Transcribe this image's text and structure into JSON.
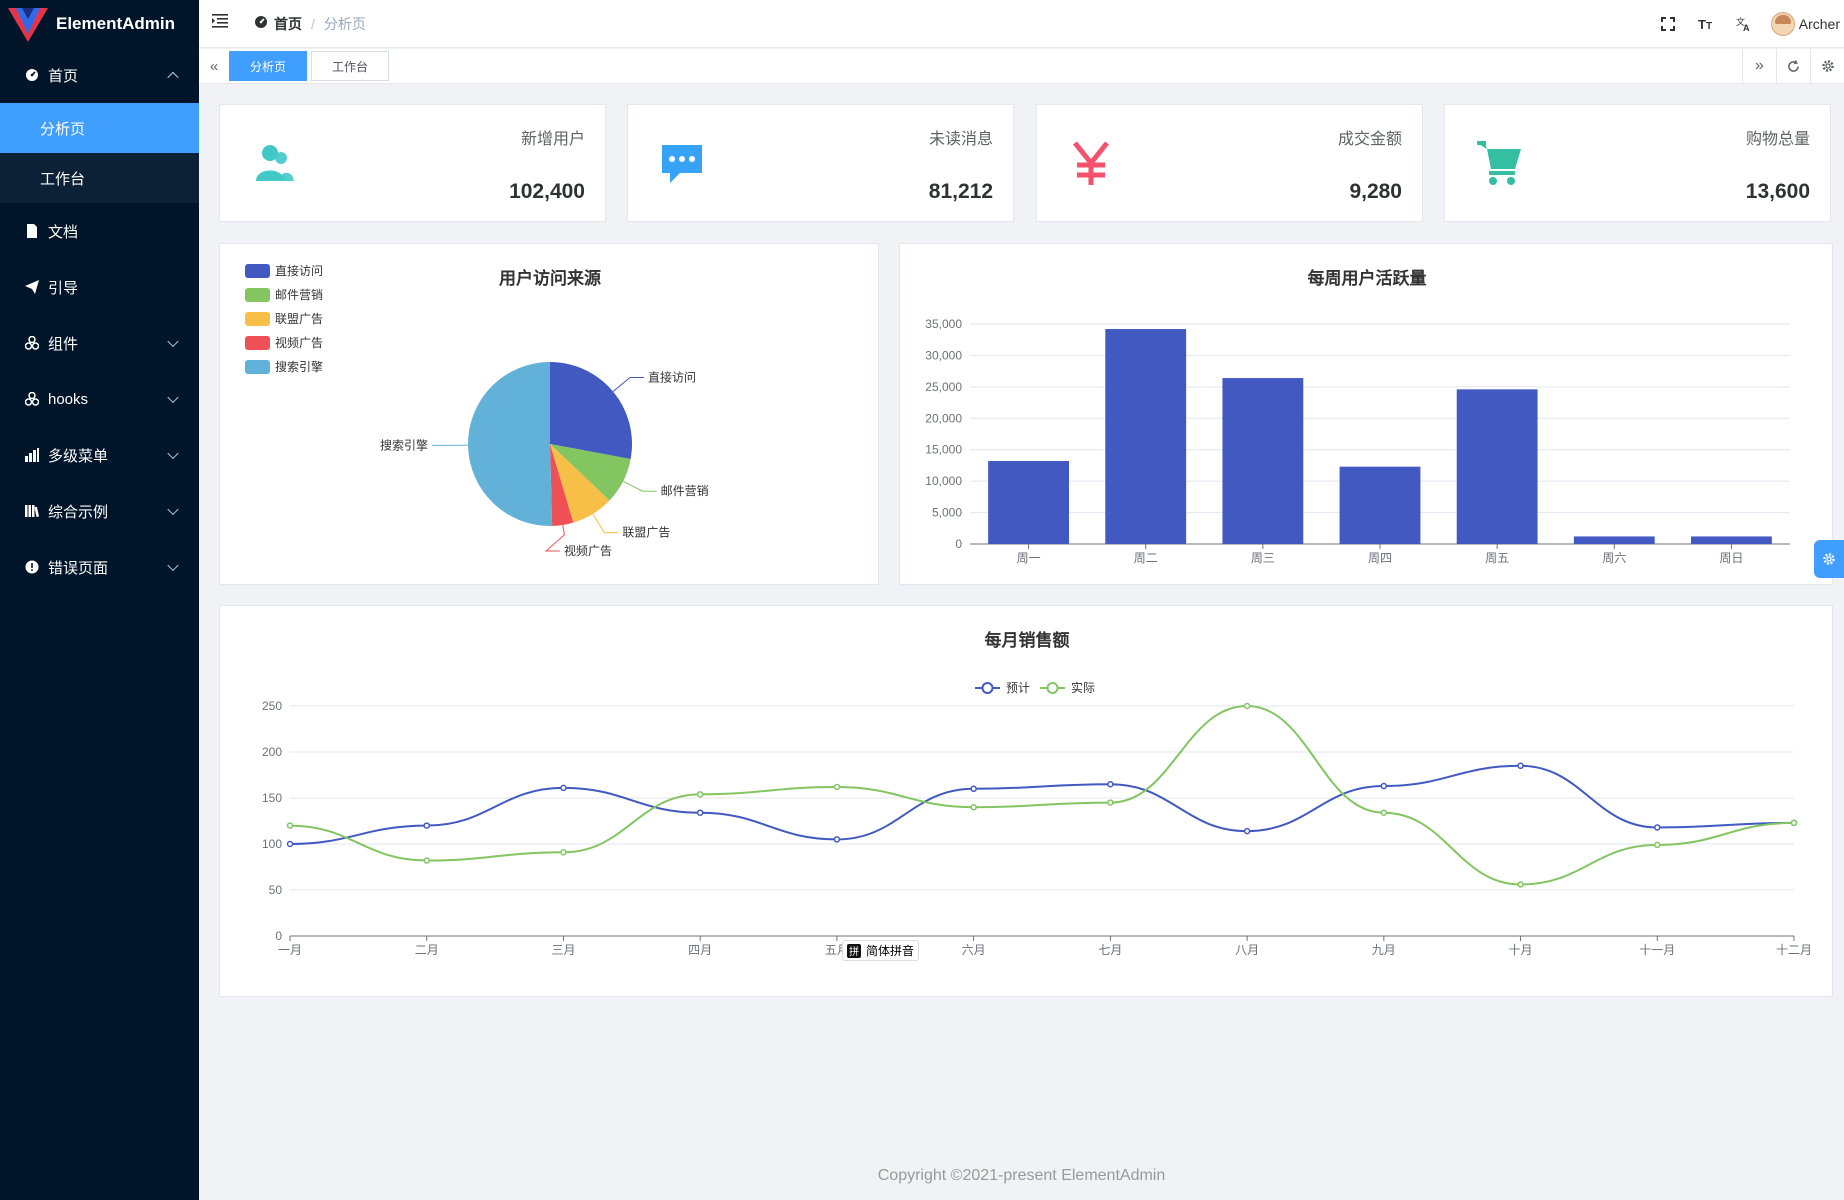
{
  "app": {
    "name": "ElementAdmin"
  },
  "sidebar": {
    "items": [
      {
        "label": "首页",
        "icon": "dashboard-icon",
        "expanded": true,
        "children": [
          {
            "label": "分析页",
            "active": true
          },
          {
            "label": "工作台",
            "active": false
          }
        ]
      },
      {
        "label": "文档",
        "icon": "document-icon"
      },
      {
        "label": "引导",
        "icon": "send-icon"
      },
      {
        "label": "组件",
        "icon": "components-icon",
        "hasChildren": true
      },
      {
        "label": "hooks",
        "icon": "hooks-icon",
        "hasChildren": true
      },
      {
        "label": "多级菜单",
        "icon": "bar-chart-icon",
        "hasChildren": true
      },
      {
        "label": "综合示例",
        "icon": "library-icon",
        "hasChildren": true
      },
      {
        "label": "错误页面",
        "icon": "error-icon",
        "hasChildren": true
      }
    ]
  },
  "header": {
    "breadcrumb": {
      "home": "首页",
      "current": "分析页"
    },
    "user": "Archer"
  },
  "tabs": [
    {
      "label": "分析页",
      "active": true
    },
    {
      "label": "工作台",
      "active": false
    }
  ],
  "stats": [
    {
      "label": "新增用户",
      "value": "102,400",
      "icon": "users-icon",
      "color": "#40c9c6"
    },
    {
      "label": "未读消息",
      "value": "81,212",
      "icon": "message-icon",
      "color": "#36a3f7"
    },
    {
      "label": "成交金额",
      "value": "9,280",
      "icon": "yen-icon",
      "color": "#f4516c"
    },
    {
      "label": "购物总量",
      "value": "13,600",
      "icon": "cart-icon",
      "color": "#34bfa3"
    }
  ],
  "ime": {
    "label": "简体拼音",
    "glyph": "拼"
  },
  "footer": {
    "text": "Copyright ©2021-present ElementAdmin"
  },
  "chart_data": [
    {
      "type": "pie",
      "title": "用户访问来源",
      "legend_position": "top-left",
      "categories": [
        "直接访问",
        "邮件营销",
        "联盟广告",
        "视频广告",
        "搜索引擎"
      ],
      "values": [
        335,
        110,
        100,
        50,
        605
      ],
      "colors": [
        "#4159c0",
        "#82c561",
        "#f8bf48",
        "#ee5056",
        "#62b1d8"
      ]
    },
    {
      "type": "bar",
      "title": "每周用户活跃量",
      "categories": [
        "周一",
        "周二",
        "周三",
        "周四",
        "周五",
        "周六",
        "周日"
      ],
      "values": [
        13200,
        34200,
        26400,
        12300,
        24600,
        1200,
        1200
      ],
      "ylim": [
        0,
        35000
      ],
      "yticks": [
        "0",
        "5,000",
        "10,000",
        "15,000",
        "20,000",
        "25,000",
        "30,000",
        "35,000"
      ],
      "color": "#4159c0",
      "grid": true
    },
    {
      "type": "line",
      "title": "每月销售额",
      "legend_position": "top-center",
      "categories": [
        "一月",
        "二月",
        "三月",
        "四月",
        "五月",
        "六月",
        "七月",
        "八月",
        "九月",
        "十月",
        "十一月",
        "十二月"
      ],
      "series": [
        {
          "name": "预计",
          "color": "#4159c0",
          "values": [
            100,
            120,
            161,
            134,
            105,
            160,
            165,
            114,
            163,
            185,
            118,
            123
          ]
        },
        {
          "name": "实际",
          "color": "#82c561",
          "values": [
            120,
            82,
            91,
            154,
            162,
            140,
            145,
            250,
            134,
            56,
            99,
            123
          ]
        }
      ],
      "ylim": [
        0,
        250
      ],
      "yticks": [
        "0",
        "50",
        "100",
        "150",
        "200",
        "250"
      ],
      "grid": true,
      "smooth": true
    }
  ]
}
